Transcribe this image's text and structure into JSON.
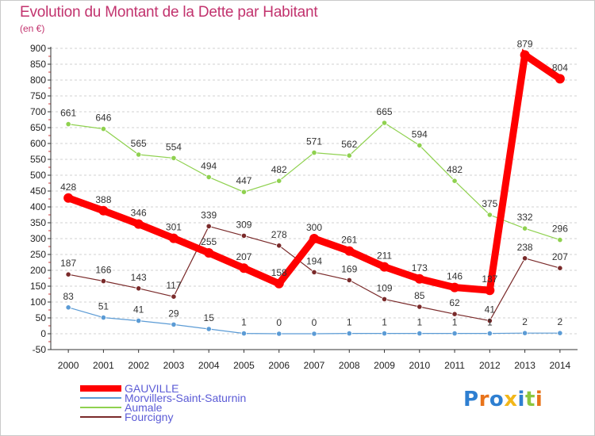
{
  "chart_data": {
    "type": "line",
    "title": "Evolution du Montant de la Dette par Habitant",
    "subtitle": "(en €)",
    "x": [
      "2000",
      "2001",
      "2002",
      "2003",
      "2004",
      "2005",
      "2006",
      "2007",
      "2008",
      "2009",
      "2010",
      "2011",
      "2012",
      "2013",
      "2014"
    ],
    "ylim": [
      -50,
      900
    ],
    "yticks": [
      -50,
      0,
      50,
      100,
      150,
      200,
      250,
      300,
      350,
      400,
      450,
      500,
      550,
      600,
      650,
      700,
      750,
      800,
      850,
      900
    ],
    "grid": "horizontal-dashed",
    "legend_position": "bottom-left",
    "series": [
      {
        "name": "GAUVILLE",
        "color": "#ff0000",
        "values": [
          428,
          388,
          346,
          301,
          255,
          207,
          158,
          300,
          261,
          211,
          173,
          146,
          137,
          879,
          804
        ]
      },
      {
        "name": "Morvillers-Saint-Saturnin",
        "color": "#5b9bd5",
        "values": [
          83,
          51,
          41,
          29,
          15,
          1,
          0,
          0,
          1,
          1,
          1,
          1,
          1,
          2,
          2
        ]
      },
      {
        "name": "Aumale",
        "color": "#8fd14f",
        "values": [
          661,
          646,
          565,
          554,
          494,
          447,
          482,
          571,
          562,
          665,
          594,
          482,
          375,
          332,
          296
        ]
      },
      {
        "name": "Fourcigny",
        "color": "#7a2a2a",
        "values": [
          187,
          166,
          143,
          117,
          339,
          309,
          278,
          194,
          169,
          109,
          85,
          62,
          41,
          238,
          207
        ]
      }
    ]
  },
  "brand": {
    "text": "Proxiti",
    "colors": [
      "#2e7fd1",
      "#e8731a",
      "#2e7fd1",
      "#f2b71a",
      "#2e7fd1",
      "#8cc63f",
      "#e8731a"
    ]
  }
}
